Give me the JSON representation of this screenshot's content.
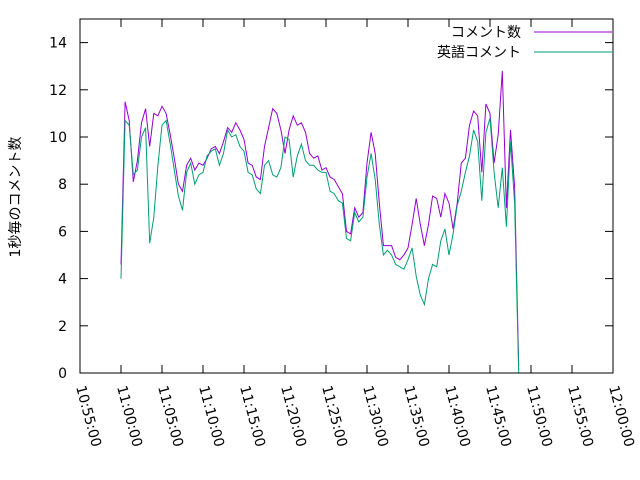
{
  "chart_data": {
    "type": "line",
    "title": "",
    "xlabel": "",
    "ylabel": "1秒毎のコメント数",
    "ylim": [
      0,
      15
    ],
    "xlim": [
      "10:55:00",
      "12:00:00"
    ],
    "yticks": [
      "0",
      "2",
      "4",
      "6",
      "8",
      "10",
      "12",
      "14"
    ],
    "xticks": [
      "10:55:00",
      "11:00:00",
      "11:05:00",
      "11:10:00",
      "11:15:00",
      "11:20:00",
      "11:25:00",
      "11:30:00",
      "11:35:00",
      "11:40:00",
      "11:45:00",
      "11:50:00",
      "11:55:00",
      "12:00:00"
    ],
    "grid": false,
    "legend_position": "top-right",
    "series": [
      {
        "name": "コメント数",
        "color": "#9400d3",
        "points": [
          [
            "11:00:00",
            4.6
          ],
          [
            "11:00:30",
            11.5
          ],
          [
            "11:01:00",
            10.7
          ],
          [
            "11:01:30",
            8.1
          ],
          [
            "11:02:00",
            9.0
          ],
          [
            "11:02:30",
            10.6
          ],
          [
            "11:03:00",
            11.2
          ],
          [
            "11:03:30",
            9.6
          ],
          [
            "11:04:00",
            11.0
          ],
          [
            "11:04:30",
            10.9
          ],
          [
            "11:05:00",
            11.3
          ],
          [
            "11:05:30",
            11.0
          ],
          [
            "11:06:00",
            10.1
          ],
          [
            "11:06:30",
            9.1
          ],
          [
            "11:07:00",
            8.0
          ],
          [
            "11:07:30",
            7.7
          ],
          [
            "11:08:00",
            8.8
          ],
          [
            "11:08:30",
            9.1
          ],
          [
            "11:09:00",
            8.6
          ],
          [
            "11:09:30",
            8.9
          ],
          [
            "11:10:00",
            8.8
          ],
          [
            "11:10:30",
            9.1
          ],
          [
            "11:11:00",
            9.5
          ],
          [
            "11:11:30",
            9.6
          ],
          [
            "11:12:00",
            9.3
          ],
          [
            "11:12:30",
            9.8
          ],
          [
            "11:13:00",
            10.4
          ],
          [
            "11:13:30",
            10.2
          ],
          [
            "11:14:00",
            10.6
          ],
          [
            "11:14:30",
            10.3
          ],
          [
            "11:15:00",
            9.9
          ],
          [
            "11:15:30",
            8.9
          ],
          [
            "11:16:00",
            8.8
          ],
          [
            "11:16:30",
            8.3
          ],
          [
            "11:17:00",
            8.2
          ],
          [
            "11:17:30",
            9.6
          ],
          [
            "11:18:00",
            10.4
          ],
          [
            "11:18:30",
            11.2
          ],
          [
            "11:19:00",
            11.0
          ],
          [
            "11:19:30",
            10.3
          ],
          [
            "11:20:00",
            9.3
          ],
          [
            "11:20:30",
            10.3
          ],
          [
            "11:21:00",
            10.9
          ],
          [
            "11:21:30",
            10.5
          ],
          [
            "11:22:00",
            10.6
          ],
          [
            "11:22:30",
            10.2
          ],
          [
            "11:23:00",
            9.3
          ],
          [
            "11:23:30",
            9.1
          ],
          [
            "11:24:00",
            9.2
          ],
          [
            "11:24:30",
            8.6
          ],
          [
            "11:25:00",
            8.7
          ],
          [
            "11:25:30",
            8.3
          ],
          [
            "11:26:00",
            8.2
          ],
          [
            "11:26:30",
            7.9
          ],
          [
            "11:27:00",
            7.6
          ],
          [
            "11:27:30",
            6.0
          ],
          [
            "11:28:00",
            5.9
          ],
          [
            "11:28:30",
            7.0
          ],
          [
            "11:29:00",
            6.6
          ],
          [
            "11:29:30",
            6.8
          ],
          [
            "11:30:00",
            8.9
          ],
          [
            "11:30:30",
            10.2
          ],
          [
            "11:31:00",
            9.3
          ],
          [
            "11:31:30",
            7.2
          ],
          [
            "11:32:00",
            5.4
          ],
          [
            "11:32:30",
            5.4
          ],
          [
            "11:33:00",
            5.4
          ],
          [
            "11:33:30",
            4.9
          ],
          [
            "11:34:00",
            4.8
          ],
          [
            "11:34:30",
            5.0
          ],
          [
            "11:35:00",
            5.3
          ],
          [
            "11:35:30",
            6.3
          ],
          [
            "11:36:00",
            7.4
          ],
          [
            "11:36:30",
            6.3
          ],
          [
            "11:37:00",
            5.4
          ],
          [
            "11:37:30",
            6.3
          ],
          [
            "11:38:00",
            7.5
          ],
          [
            "11:38:30",
            7.4
          ],
          [
            "11:39:00",
            6.6
          ],
          [
            "11:39:30",
            7.6
          ],
          [
            "11:40:00",
            7.2
          ],
          [
            "11:40:30",
            6.1
          ],
          [
            "11:41:00",
            7.2
          ],
          [
            "11:41:30",
            8.9
          ],
          [
            "11:42:00",
            9.1
          ],
          [
            "11:42:30",
            10.5
          ],
          [
            "11:43:00",
            11.1
          ],
          [
            "11:43:30",
            10.9
          ],
          [
            "11:44:00",
            8.5
          ],
          [
            "11:44:30",
            11.4
          ],
          [
            "11:45:00",
            11.0
          ],
          [
            "11:45:30",
            8.9
          ],
          [
            "11:46:00",
            10.1
          ],
          [
            "11:46:30",
            12.8
          ],
          [
            "11:47:00",
            7.0
          ],
          [
            "11:47:30",
            10.3
          ],
          [
            "11:48:00",
            7.9
          ],
          [
            "11:48:30",
            0.3
          ]
        ]
      },
      {
        "name": "英語コメント",
        "color": "#009e73",
        "points": [
          [
            "11:00:00",
            4.0
          ],
          [
            "11:00:30",
            10.7
          ],
          [
            "11:01:00",
            10.5
          ],
          [
            "11:01:30",
            8.4
          ],
          [
            "11:02:00",
            8.6
          ],
          [
            "11:02:30",
            10.0
          ],
          [
            "11:03:00",
            10.4
          ],
          [
            "11:03:30",
            5.5
          ],
          [
            "11:04:00",
            6.6
          ],
          [
            "11:04:30",
            8.8
          ],
          [
            "11:05:00",
            10.5
          ],
          [
            "11:05:30",
            10.7
          ],
          [
            "11:06:00",
            9.7
          ],
          [
            "11:06:30",
            8.6
          ],
          [
            "11:07:00",
            7.5
          ],
          [
            "11:07:30",
            6.9
          ],
          [
            "11:08:00",
            8.5
          ],
          [
            "11:08:30",
            8.9
          ],
          [
            "11:09:00",
            8.0
          ],
          [
            "11:09:30",
            8.4
          ],
          [
            "11:10:00",
            8.5
          ],
          [
            "11:10:30",
            9.2
          ],
          [
            "11:11:00",
            9.4
          ],
          [
            "11:11:30",
            9.5
          ],
          [
            "11:12:00",
            8.8
          ],
          [
            "11:12:30",
            9.3
          ],
          [
            "11:13:00",
            10.3
          ],
          [
            "11:13:30",
            10.0
          ],
          [
            "11:14:00",
            10.1
          ],
          [
            "11:14:30",
            9.6
          ],
          [
            "11:15:00",
            9.4
          ],
          [
            "11:15:30",
            8.5
          ],
          [
            "11:16:00",
            8.4
          ],
          [
            "11:16:30",
            7.8
          ],
          [
            "11:17:00",
            7.6
          ],
          [
            "11:17:30",
            8.8
          ],
          [
            "11:18:00",
            9.0
          ],
          [
            "11:18:30",
            8.4
          ],
          [
            "11:19:00",
            8.3
          ],
          [
            "11:19:30",
            8.7
          ],
          [
            "11:20:00",
            10.0
          ],
          [
            "11:20:30",
            9.9
          ],
          [
            "11:21:00",
            8.3
          ],
          [
            "11:21:30",
            9.2
          ],
          [
            "11:22:00",
            9.7
          ],
          [
            "11:22:30",
            9.0
          ],
          [
            "11:23:00",
            8.8
          ],
          [
            "11:23:30",
            8.8
          ],
          [
            "11:24:00",
            8.6
          ],
          [
            "11:24:30",
            8.5
          ],
          [
            "11:25:00",
            8.5
          ],
          [
            "11:25:30",
            7.7
          ],
          [
            "11:26:00",
            7.6
          ],
          [
            "11:26:30",
            7.3
          ],
          [
            "11:27:00",
            7.2
          ],
          [
            "11:27:30",
            5.7
          ],
          [
            "11:28:00",
            5.6
          ],
          [
            "11:28:30",
            6.8
          ],
          [
            "11:29:00",
            6.4
          ],
          [
            "11:29:30",
            6.6
          ],
          [
            "11:30:00",
            8.3
          ],
          [
            "11:30:30",
            9.3
          ],
          [
            "11:31:00",
            8.2
          ],
          [
            "11:31:30",
            6.3
          ],
          [
            "11:32:00",
            5.0
          ],
          [
            "11:32:30",
            5.2
          ],
          [
            "11:33:00",
            5.0
          ],
          [
            "11:33:30",
            4.6
          ],
          [
            "11:34:00",
            4.5
          ],
          [
            "11:34:30",
            4.4
          ],
          [
            "11:35:00",
            4.8
          ],
          [
            "11:35:30",
            5.3
          ],
          [
            "11:36:00",
            4.1
          ],
          [
            "11:36:30",
            3.3
          ],
          [
            "11:37:00",
            2.9
          ],
          [
            "11:37:30",
            4.0
          ],
          [
            "11:38:00",
            4.6
          ],
          [
            "11:38:30",
            4.5
          ],
          [
            "11:39:00",
            5.6
          ],
          [
            "11:39:30",
            6.1
          ],
          [
            "11:40:00",
            5.0
          ],
          [
            "11:40:30",
            5.9
          ],
          [
            "11:41:00",
            7.1
          ],
          [
            "11:41:30",
            7.7
          ],
          [
            "11:42:00",
            8.5
          ],
          [
            "11:42:30",
            9.2
          ],
          [
            "11:43:00",
            10.3
          ],
          [
            "11:43:30",
            9.8
          ],
          [
            "11:44:00",
            7.3
          ],
          [
            "11:44:30",
            10.2
          ],
          [
            "11:45:00",
            10.8
          ],
          [
            "11:45:30",
            8.5
          ],
          [
            "11:46:00",
            7.0
          ],
          [
            "11:46:30",
            8.7
          ],
          [
            "11:47:00",
            6.2
          ],
          [
            "11:47:30",
            9.8
          ],
          [
            "11:48:00",
            7.2
          ],
          [
            "11:48:30",
            0.0
          ]
        ]
      }
    ]
  }
}
